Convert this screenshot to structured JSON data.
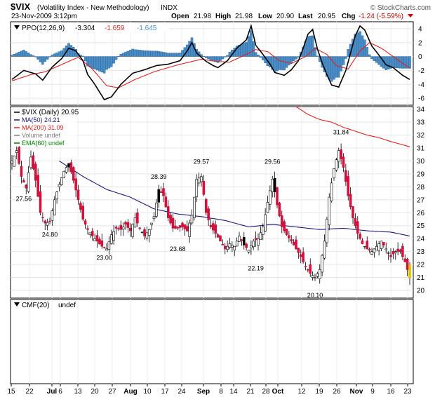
{
  "header": {
    "symbol": "$VIX",
    "name": "(Volatility Index - New Methodology)",
    "exchange": "INDX",
    "date_time": "23-Nov-2009 3:12pm",
    "open_label": "Open",
    "open": "21.98",
    "high_label": "High",
    "high": "21.98",
    "low_label": "Low",
    "low": "20.90",
    "last_label": "Last",
    "last": "20.95",
    "chg_label": "Chg",
    "chg": "-1.24 (-5.59%)",
    "copyright": "© StockCharts.com"
  },
  "chart_data": [
    {
      "type": "bar+line",
      "panel": "PPO",
      "legend": {
        "label": "PPO(12,26,9)",
        "values": [
          "-3.304",
          "-1.659",
          "-1.645"
        ]
      },
      "ylim": [
        -7,
        5
      ],
      "yticks": [
        4,
        2,
        0,
        -2,
        -4,
        -6
      ],
      "colors": {
        "histogram": "#4a8ec9",
        "ppo": "#000000",
        "signal": "#e02020"
      },
      "anchors": {
        "ppo": [
          [
            0,
            -3.3
          ],
          [
            5,
            -2.0
          ],
          [
            10,
            -2.5
          ],
          [
            13,
            -3.4
          ],
          [
            17,
            -1.5
          ],
          [
            21,
            -0.3
          ],
          [
            24,
            1.2
          ],
          [
            27,
            0.8
          ],
          [
            30,
            -0.6
          ],
          [
            32,
            -2.6
          ],
          [
            35,
            -4.0
          ],
          [
            39,
            -6.2
          ],
          [
            42,
            -5.8
          ],
          [
            46,
            -4.0
          ],
          [
            51,
            -2.4
          ],
          [
            56,
            -1.9
          ],
          [
            61,
            -1.3
          ],
          [
            66,
            -1.1
          ],
          [
            71,
            -0.6
          ],
          [
            74,
            0.8
          ],
          [
            76,
            2.0
          ],
          [
            78,
            0.5
          ],
          [
            82,
            -0.7
          ],
          [
            85,
            -1.3
          ],
          [
            87,
            -1.6
          ],
          [
            91,
            -0.6
          ],
          [
            95,
            1.2
          ],
          [
            99,
            2.4
          ],
          [
            101,
            4.4
          ],
          [
            103,
            1.6
          ],
          [
            106,
            0.3
          ],
          [
            109,
            -1.1
          ],
          [
            111,
            -2.3
          ],
          [
            115,
            -2.7
          ],
          [
            118,
            -1.9
          ],
          [
            121,
            -0.6
          ],
          [
            123,
            1.2
          ],
          [
            125,
            3.2
          ],
          [
            127,
            3.9
          ],
          [
            129,
            1.1
          ],
          [
            131,
            -0.9
          ],
          [
            133,
            -2.6
          ],
          [
            135,
            -4.1
          ],
          [
            138,
            -4.4
          ],
          [
            141,
            -2.0
          ],
          [
            143,
            0.5
          ],
          [
            145,
            3.0
          ],
          [
            147,
            4.4
          ],
          [
            149,
            3.8
          ],
          [
            152,
            1.5
          ],
          [
            155,
            0.2
          ],
          [
            158,
            -1.2
          ],
          [
            161,
            -1.6
          ],
          [
            165,
            -2.7
          ],
          [
            168,
            -3.3
          ]
        ],
        "signal": [
          [
            0,
            -3.5
          ],
          [
            8,
            -2.6
          ],
          [
            14,
            -2.2
          ],
          [
            22,
            -1.0
          ],
          [
            28,
            -0.1
          ],
          [
            34,
            -1.8
          ],
          [
            40,
            -4.2
          ],
          [
            45,
            -4.5
          ],
          [
            52,
            -3.3
          ],
          [
            60,
            -2.2
          ],
          [
            70,
            -1.2
          ],
          [
            80,
            -0.4
          ],
          [
            86,
            -0.7
          ],
          [
            92,
            -0.8
          ],
          [
            97,
            0.0
          ],
          [
            103,
            1.0
          ],
          [
            108,
            0.7
          ],
          [
            113,
            -0.6
          ],
          [
            118,
            -1.0
          ],
          [
            124,
            0.0
          ],
          [
            128,
            1.2
          ],
          [
            133,
            0.3
          ],
          [
            137,
            -1.3
          ],
          [
            142,
            -1.8
          ],
          [
            147,
            0.8
          ],
          [
            151,
            2.0
          ],
          [
            156,
            1.2
          ],
          [
            161,
            0.0
          ],
          [
            165,
            -1.0
          ],
          [
            168,
            -1.6
          ]
        ]
      }
    },
    {
      "type": "candlestick",
      "panel": "Price",
      "legend": [
        {
          "label": "$VIX (Daily)",
          "value": "20.95",
          "color": "#000000"
        },
        {
          "label": "MA(50)",
          "value": "24.21",
          "color": "#1a1a80"
        },
        {
          "label": "MA(200)",
          "value": "31.09",
          "color": "#e02020"
        },
        {
          "label": "Volume",
          "value": "undef",
          "color": "#808080"
        },
        {
          "label": "EMA(60)",
          "value": "undef",
          "color": "#008000"
        }
      ],
      "ylim": [
        19.4,
        34.2
      ],
      "yticks": [
        34,
        33,
        32,
        31,
        30,
        29,
        28,
        27,
        26,
        25,
        24,
        23,
        22,
        21,
        20
      ],
      "annotations": [
        {
          "label": "27.56",
          "x": 5,
          "y": 27.56
        },
        {
          "label": "24.80",
          "x": 16,
          "y": 24.8
        },
        {
          "label": "23.00",
          "x": 39,
          "y": 23.0
        },
        {
          "label": "28.39",
          "x": 62,
          "y": 28.39
        },
        {
          "label": "23.68",
          "x": 70,
          "y": 23.68
        },
        {
          "label": "29.57",
          "x": 80,
          "y": 29.57
        },
        {
          "label": "22.19",
          "x": 103,
          "y": 22.19
        },
        {
          "label": "29.56",
          "x": 110,
          "y": 29.56
        },
        {
          "label": "20.10",
          "x": 128,
          "y": 20.1
        },
        {
          "label": "31.84",
          "x": 139,
          "y": 31.84
        }
      ],
      "close_anchors": [
        [
          0,
          30.0
        ],
        [
          2,
          30.8
        ],
        [
          4,
          28.8
        ],
        [
          6,
          27.9
        ],
        [
          8,
          30.3
        ],
        [
          10,
          28.5
        ],
        [
          12,
          26.0
        ],
        [
          14,
          25.2
        ],
        [
          16,
          25.3
        ],
        [
          18,
          27.0
        ],
        [
          20,
          28.2
        ],
        [
          22,
          29.2
        ],
        [
          24,
          29.8
        ],
        [
          26,
          28.5
        ],
        [
          28,
          27.0
        ],
        [
          30,
          25.5
        ],
        [
          32,
          24.7
        ],
        [
          34,
          24.2
        ],
        [
          36,
          23.8
        ],
        [
          38,
          23.4
        ],
        [
          40,
          23.2
        ],
        [
          42,
          24.3
        ],
        [
          44,
          24.8
        ],
        [
          46,
          24.7
        ],
        [
          48,
          25.1
        ],
        [
          50,
          24.6
        ],
        [
          52,
          25.6
        ],
        [
          54,
          24.8
        ],
        [
          56,
          24.2
        ],
        [
          58,
          24.7
        ],
        [
          60,
          25.7
        ],
        [
          62,
          27.8
        ],
        [
          64,
          27.3
        ],
        [
          66,
          25.6
        ],
        [
          68,
          24.8
        ],
        [
          70,
          24.8
        ],
        [
          72,
          24.9
        ],
        [
          74,
          24.6
        ],
        [
          76,
          25.8
        ],
        [
          78,
          28.6
        ],
        [
          80,
          28.8
        ],
        [
          82,
          26.0
        ],
        [
          84,
          24.9
        ],
        [
          86,
          24.4
        ],
        [
          88,
          23.8
        ],
        [
          90,
          23.2
        ],
        [
          92,
          23.6
        ],
        [
          94,
          23.4
        ],
        [
          96,
          24.2
        ],
        [
          98,
          23.5
        ],
        [
          100,
          23.1
        ],
        [
          102,
          23.8
        ],
        [
          104,
          24.0
        ],
        [
          106,
          24.9
        ],
        [
          108,
          26.8
        ],
        [
          110,
          28.6
        ],
        [
          112,
          26.6
        ],
        [
          114,
          24.9
        ],
        [
          116,
          24.3
        ],
        [
          118,
          23.8
        ],
        [
          120,
          23.2
        ],
        [
          122,
          22.6
        ],
        [
          124,
          21.8
        ],
        [
          126,
          21.3
        ],
        [
          128,
          21.0
        ],
        [
          130,
          21.6
        ],
        [
          132,
          23.8
        ],
        [
          134,
          27.2
        ],
        [
          136,
          29.4
        ],
        [
          138,
          30.8
        ],
        [
          140,
          29.5
        ],
        [
          142,
          27.3
        ],
        [
          144,
          25.6
        ],
        [
          146,
          24.4
        ],
        [
          148,
          23.6
        ],
        [
          150,
          23.2
        ],
        [
          152,
          23.0
        ],
        [
          154,
          23.4
        ],
        [
          156,
          23.8
        ],
        [
          158,
          23.2
        ],
        [
          160,
          22.6
        ],
        [
          162,
          23.0
        ],
        [
          164,
          23.0
        ],
        [
          166,
          22.2
        ],
        [
          168,
          21.0
        ]
      ],
      "ma50_anchors": [
        [
          20,
          30.0
        ],
        [
          30,
          28.8
        ],
        [
          40,
          27.8
        ],
        [
          50,
          27.2
        ],
        [
          60,
          26.3
        ],
        [
          70,
          25.9
        ],
        [
          80,
          25.7
        ],
        [
          90,
          25.4
        ],
        [
          100,
          24.9
        ],
        [
          110,
          25.1
        ],
        [
          120,
          24.9
        ],
        [
          130,
          24.7
        ],
        [
          140,
          24.8
        ],
        [
          150,
          24.6
        ],
        [
          160,
          24.5
        ],
        [
          168,
          24.2
        ]
      ],
      "ma200_anchors": [
        [
          120,
          34.2
        ],
        [
          125,
          33.6
        ],
        [
          130,
          33.2
        ],
        [
          135,
          33.0
        ],
        [
          140,
          32.6
        ],
        [
          145,
          32.3
        ],
        [
          150,
          32.0
        ],
        [
          155,
          31.8
        ],
        [
          160,
          31.5
        ],
        [
          164,
          31.3
        ],
        [
          168,
          31.1
        ]
      ],
      "colors": {
        "up": "#ffffff",
        "down": "#d4103c",
        "black": "#000000",
        "ma50": "#1a1a80",
        "ma200": "#e02020",
        "last": "#e0c000"
      }
    },
    {
      "type": "line",
      "panel": "CMF",
      "legend": {
        "label": "CMF(20)",
        "value": "undef"
      }
    }
  ],
  "x_axis": {
    "labels": [
      {
        "text": "15",
        "bold": false
      },
      {
        "text": "22",
        "bold": false
      },
      {
        "text": "Jul",
        "bold": true
      },
      {
        "text": "6",
        "bold": false
      },
      {
        "text": "13",
        "bold": false
      },
      {
        "text": "20",
        "bold": false
      },
      {
        "text": "27",
        "bold": false
      },
      {
        "text": "Aug",
        "bold": true
      },
      {
        "text": "10",
        "bold": false
      },
      {
        "text": "17",
        "bold": false
      },
      {
        "text": "24",
        "bold": false
      },
      {
        "text": "Sep",
        "bold": true
      },
      {
        "text": "8",
        "bold": false
      },
      {
        "text": "14",
        "bold": false
      },
      {
        "text": "21",
        "bold": false
      },
      {
        "text": "28",
        "bold": false
      },
      {
        "text": "Oct",
        "bold": true
      },
      {
        "text": "12",
        "bold": false
      },
      {
        "text": "19",
        "bold": false
      },
      {
        "text": "26",
        "bold": false
      },
      {
        "text": "Nov",
        "bold": true
      },
      {
        "text": "9",
        "bold": false
      },
      {
        "text": "16",
        "bold": false
      },
      {
        "text": "23",
        "bold": false
      }
    ]
  }
}
